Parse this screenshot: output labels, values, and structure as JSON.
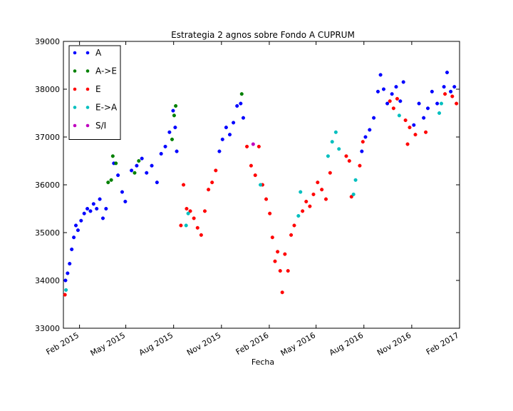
{
  "chart_data": {
    "type": "scatter",
    "title": "Estrategia 2 agnos sobre Fondo A CUPRUM",
    "xlabel": "Fecha",
    "ylabel": "",
    "ylim": [
      33000,
      39000
    ],
    "xlim": [
      "2015-01-01",
      "2017-02-01"
    ],
    "grid": false,
    "legend_position": "top-left",
    "x_ticks": [
      {
        "label": "Feb 2015",
        "date": "2015-02-01"
      },
      {
        "label": "May 2015",
        "date": "2015-05-01"
      },
      {
        "label": "Aug 2015",
        "date": "2015-08-01"
      },
      {
        "label": "Nov 2015",
        "date": "2015-11-01"
      },
      {
        "label": "Feb 2016",
        "date": "2016-02-01"
      },
      {
        "label": "May 2016",
        "date": "2016-05-01"
      },
      {
        "label": "Aug 2016",
        "date": "2016-08-01"
      },
      {
        "label": "Nov 2016",
        "date": "2016-11-01"
      },
      {
        "label": "Feb 2017",
        "date": "2017-02-01"
      }
    ],
    "y_ticks": [
      33000,
      34000,
      35000,
      36000,
      37000,
      38000,
      39000
    ],
    "series": [
      {
        "name": "A",
        "color": "#0000ff",
        "points": [
          {
            "x": "2015-01-05",
            "y": 34000
          },
          {
            "x": "2015-01-09",
            "y": 34150
          },
          {
            "x": "2015-01-13",
            "y": 34350
          },
          {
            "x": "2015-01-17",
            "y": 34650
          },
          {
            "x": "2015-01-21",
            "y": 34900
          },
          {
            "x": "2015-01-25",
            "y": 35150
          },
          {
            "x": "2015-01-29",
            "y": 35050
          },
          {
            "x": "2015-02-04",
            "y": 35250
          },
          {
            "x": "2015-02-10",
            "y": 35400
          },
          {
            "x": "2015-02-16",
            "y": 35500
          },
          {
            "x": "2015-02-22",
            "y": 35450
          },
          {
            "x": "2015-02-28",
            "y": 35600
          },
          {
            "x": "2015-03-06",
            "y": 35500
          },
          {
            "x": "2015-03-12",
            "y": 35700
          },
          {
            "x": "2015-03-18",
            "y": 35300
          },
          {
            "x": "2015-03-24",
            "y": 35500
          },
          {
            "x": "2015-04-08",
            "y": 36450
          },
          {
            "x": "2015-04-16",
            "y": 36200
          },
          {
            "x": "2015-04-24",
            "y": 35850
          },
          {
            "x": "2015-04-30",
            "y": 35650
          },
          {
            "x": "2015-05-12",
            "y": 36300
          },
          {
            "x": "2015-05-22",
            "y": 36400
          },
          {
            "x": "2015-06-01",
            "y": 36550
          },
          {
            "x": "2015-06-10",
            "y": 36250
          },
          {
            "x": "2015-06-20",
            "y": 36400
          },
          {
            "x": "2015-06-30",
            "y": 36050
          },
          {
            "x": "2015-07-08",
            "y": 36650
          },
          {
            "x": "2015-07-16",
            "y": 36800
          },
          {
            "x": "2015-07-24",
            "y": 37100
          },
          {
            "x": "2015-07-31",
            "y": 37550
          },
          {
            "x": "2015-08-04",
            "y": 37200
          },
          {
            "x": "2015-08-07",
            "y": 36700
          },
          {
            "x": "2015-10-28",
            "y": 36700
          },
          {
            "x": "2015-11-03",
            "y": 36950
          },
          {
            "x": "2015-11-10",
            "y": 37200
          },
          {
            "x": "2015-11-17",
            "y": 37050
          },
          {
            "x": "2015-11-24",
            "y": 37300
          },
          {
            "x": "2015-12-01",
            "y": 37650
          },
          {
            "x": "2015-12-08",
            "y": 37700
          },
          {
            "x": "2015-12-13",
            "y": 37400
          },
          {
            "x": "2016-07-28",
            "y": 36700
          },
          {
            "x": "2016-08-04",
            "y": 37000
          },
          {
            "x": "2016-08-12",
            "y": 37150
          },
          {
            "x": "2016-08-20",
            "y": 37400
          },
          {
            "x": "2016-08-28",
            "y": 37950
          },
          {
            "x": "2016-09-02",
            "y": 38300
          },
          {
            "x": "2016-09-08",
            "y": 38000
          },
          {
            "x": "2016-09-15",
            "y": 37700
          },
          {
            "x": "2016-09-24",
            "y": 37900
          },
          {
            "x": "2016-10-02",
            "y": 38050
          },
          {
            "x": "2016-10-10",
            "y": 37750
          },
          {
            "x": "2016-10-16",
            "y": 38150
          },
          {
            "x": "2016-11-05",
            "y": 37250
          },
          {
            "x": "2016-11-15",
            "y": 37700
          },
          {
            "x": "2016-11-24",
            "y": 37400
          },
          {
            "x": "2016-12-02",
            "y": 37600
          },
          {
            "x": "2016-12-10",
            "y": 37950
          },
          {
            "x": "2016-12-20",
            "y": 37700
          },
          {
            "x": "2017-01-02",
            "y": 38050
          },
          {
            "x": "2017-01-08",
            "y": 38350
          },
          {
            "x": "2017-01-15",
            "y": 37950
          },
          {
            "x": "2017-01-22",
            "y": 38050
          }
        ]
      },
      {
        "name": "A->E",
        "color": "#008000",
        "points": [
          {
            "x": "2015-03-28",
            "y": 36050
          },
          {
            "x": "2015-04-03",
            "y": 36100
          },
          {
            "x": "2015-04-06",
            "y": 36600
          },
          {
            "x": "2015-04-12",
            "y": 36450
          },
          {
            "x": "2015-05-18",
            "y": 36250
          },
          {
            "x": "2015-05-26",
            "y": 36500
          },
          {
            "x": "2015-07-29",
            "y": 36950
          },
          {
            "x": "2015-08-02",
            "y": 37450
          },
          {
            "x": "2015-08-05",
            "y": 37650
          },
          {
            "x": "2015-12-10",
            "y": 37900
          }
        ]
      },
      {
        "name": "E",
        "color": "#ff0000",
        "points": [
          {
            "x": "2015-01-04",
            "y": 33700
          },
          {
            "x": "2015-08-15",
            "y": 35150
          },
          {
            "x": "2015-08-20",
            "y": 36000
          },
          {
            "x": "2015-08-26",
            "y": 35500
          },
          {
            "x": "2015-09-02",
            "y": 35450
          },
          {
            "x": "2015-09-09",
            "y": 35300
          },
          {
            "x": "2015-09-16",
            "y": 35100
          },
          {
            "x": "2015-09-23",
            "y": 34950
          },
          {
            "x": "2015-09-30",
            "y": 35450
          },
          {
            "x": "2015-10-07",
            "y": 35900
          },
          {
            "x": "2015-10-14",
            "y": 36050
          },
          {
            "x": "2015-10-21",
            "y": 36300
          },
          {
            "x": "2015-12-20",
            "y": 36800
          },
          {
            "x": "2015-12-28",
            "y": 36400
          },
          {
            "x": "2016-01-05",
            "y": 36200
          },
          {
            "x": "2016-01-12",
            "y": 36800
          },
          {
            "x": "2016-01-19",
            "y": 36000
          },
          {
            "x": "2016-01-26",
            "y": 35700
          },
          {
            "x": "2016-02-02",
            "y": 35400
          },
          {
            "x": "2016-02-07",
            "y": 34900
          },
          {
            "x": "2016-02-12",
            "y": 34400
          },
          {
            "x": "2016-02-17",
            "y": 34600
          },
          {
            "x": "2016-02-22",
            "y": 34200
          },
          {
            "x": "2016-02-26",
            "y": 33750
          },
          {
            "x": "2016-03-02",
            "y": 34550
          },
          {
            "x": "2016-03-08",
            "y": 34200
          },
          {
            "x": "2016-03-14",
            "y": 34950
          },
          {
            "x": "2016-03-20",
            "y": 35150
          },
          {
            "x": "2016-04-05",
            "y": 35450
          },
          {
            "x": "2016-04-12",
            "y": 35650
          },
          {
            "x": "2016-04-19",
            "y": 35550
          },
          {
            "x": "2016-04-26",
            "y": 35800
          },
          {
            "x": "2016-05-04",
            "y": 36050
          },
          {
            "x": "2016-05-12",
            "y": 35900
          },
          {
            "x": "2016-05-20",
            "y": 35700
          },
          {
            "x": "2016-05-28",
            "y": 36250
          },
          {
            "x": "2016-06-28",
            "y": 36600
          },
          {
            "x": "2016-07-04",
            "y": 36500
          },
          {
            "x": "2016-07-08",
            "y": 35750
          },
          {
            "x": "2016-07-24",
            "y": 36400
          },
          {
            "x": "2016-07-30",
            "y": 36900
          },
          {
            "x": "2016-09-20",
            "y": 37750
          },
          {
            "x": "2016-09-27",
            "y": 37600
          },
          {
            "x": "2016-10-04",
            "y": 37800
          },
          {
            "x": "2016-10-20",
            "y": 37350
          },
          {
            "x": "2016-10-24",
            "y": 36850
          },
          {
            "x": "2016-10-28",
            "y": 37200
          },
          {
            "x": "2016-11-08",
            "y": 37050
          },
          {
            "x": "2016-11-28",
            "y": 37100
          },
          {
            "x": "2017-01-04",
            "y": 37900
          },
          {
            "x": "2017-01-18",
            "y": 37850
          },
          {
            "x": "2017-01-26",
            "y": 37700
          }
        ]
      },
      {
        "name": "E->A",
        "color": "#00bfbf",
        "points": [
          {
            "x": "2015-01-06",
            "y": 33800
          },
          {
            "x": "2015-08-25",
            "y": 35150
          },
          {
            "x": "2015-08-29",
            "y": 35400
          },
          {
            "x": "2016-01-15",
            "y": 36000
          },
          {
            "x": "2016-03-28",
            "y": 35350
          },
          {
            "x": "2016-04-01",
            "y": 35850
          },
          {
            "x": "2016-05-24",
            "y": 36600
          },
          {
            "x": "2016-06-01",
            "y": 36900
          },
          {
            "x": "2016-06-08",
            "y": 37100
          },
          {
            "x": "2016-06-14",
            "y": 36750
          },
          {
            "x": "2016-07-12",
            "y": 35800
          },
          {
            "x": "2016-07-16",
            "y": 36100
          },
          {
            "x": "2016-10-08",
            "y": 37450
          },
          {
            "x": "2016-12-24",
            "y": 37500
          },
          {
            "x": "2016-12-28",
            "y": 37700
          }
        ]
      },
      {
        "name": "S/I",
        "color": "#bf00bf",
        "points": [
          {
            "x": "2016-01-01",
            "y": 36850
          }
        ]
      }
    ]
  }
}
